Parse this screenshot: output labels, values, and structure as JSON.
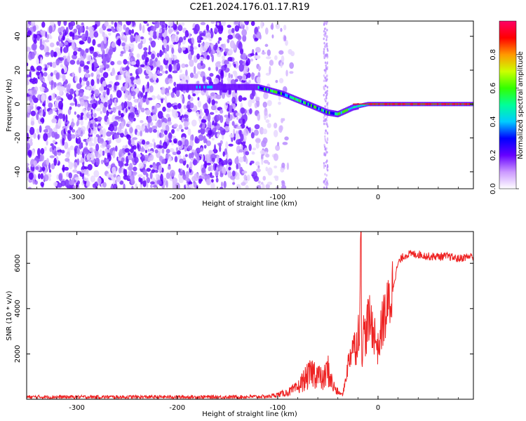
{
  "figure": {
    "title": "C2E1.2024.176.01.17.R19"
  },
  "chart_data": [
    {
      "type": "heatmap",
      "title": "C2E1.2024.176.01.17.R19",
      "xlabel": "Height of straight line (km)",
      "ylabel": "Frequency (Hz)",
      "xlim": [
        -350,
        95
      ],
      "ylim": [
        -50,
        49
      ],
      "xticks": [
        -300,
        -200,
        -100,
        0
      ],
      "yticks": [
        -40,
        -20,
        0,
        20,
        40
      ],
      "colorbar": {
        "label": "Normalized spectral amplitude",
        "range": [
          0,
          1
        ],
        "ticks": [
          "0.0",
          "0.2",
          "0.4",
          "0.6",
          "0.8"
        ],
        "colors": [
          "#ffffff",
          "#cc99ff",
          "#6600ff",
          "#0000ff",
          "#00ccff",
          "#00ff99",
          "#33ff00",
          "#ccff00",
          "#ff9900",
          "#ff0000",
          "#ff0066"
        ]
      },
      "ridge": {
        "description_points_x": [
          -180,
          -120,
          -95,
          -70,
          -50,
          -40,
          -25,
          -10,
          0,
          10,
          95
        ],
        "description_points_y": [
          10,
          10,
          6,
          0,
          -5,
          -6,
          -2,
          0,
          0,
          0,
          0
        ]
      },
      "legend": "none",
      "grid": false
    },
    {
      "type": "line",
      "xlabel": "Height of straight line (km)",
      "ylabel": "SNR (10 * v/v)",
      "xlim": [
        -350,
        95
      ],
      "ylim": [
        0,
        7400
      ],
      "xticks": [
        -300,
        -200,
        -100,
        0
      ],
      "yticks": [
        2000,
        4000,
        6000
      ],
      "series": [
        {
          "color": "#ee2222",
          "x": [
            -350,
            -300,
            -250,
            -200,
            -150,
            -110,
            -100,
            -90,
            -80,
            -75,
            -70,
            -65,
            -60,
            -55,
            -50,
            -45,
            -40,
            -35,
            -30,
            -25,
            -22,
            -20,
            -18,
            -17,
            -16,
            -15,
            -12,
            -10,
            -5,
            0,
            5,
            10,
            15,
            20,
            25,
            30,
            40,
            50,
            60,
            70,
            80,
            90,
            95
          ],
          "y": [
            100,
            100,
            100,
            100,
            100,
            120,
            200,
            300,
            500,
            800,
            1000,
            1200,
            1100,
            800,
            1300,
            600,
            300,
            200,
            1500,
            2500,
            2200,
            3000,
            3500,
            7400,
            1500,
            3000,
            2800,
            3500,
            3200,
            2200,
            3500,
            4000,
            5000,
            6000,
            6300,
            6400,
            6400,
            6300,
            6300,
            6300,
            6200,
            6300,
            6300
          ]
        }
      ],
      "legend": "none",
      "grid": false
    }
  ]
}
